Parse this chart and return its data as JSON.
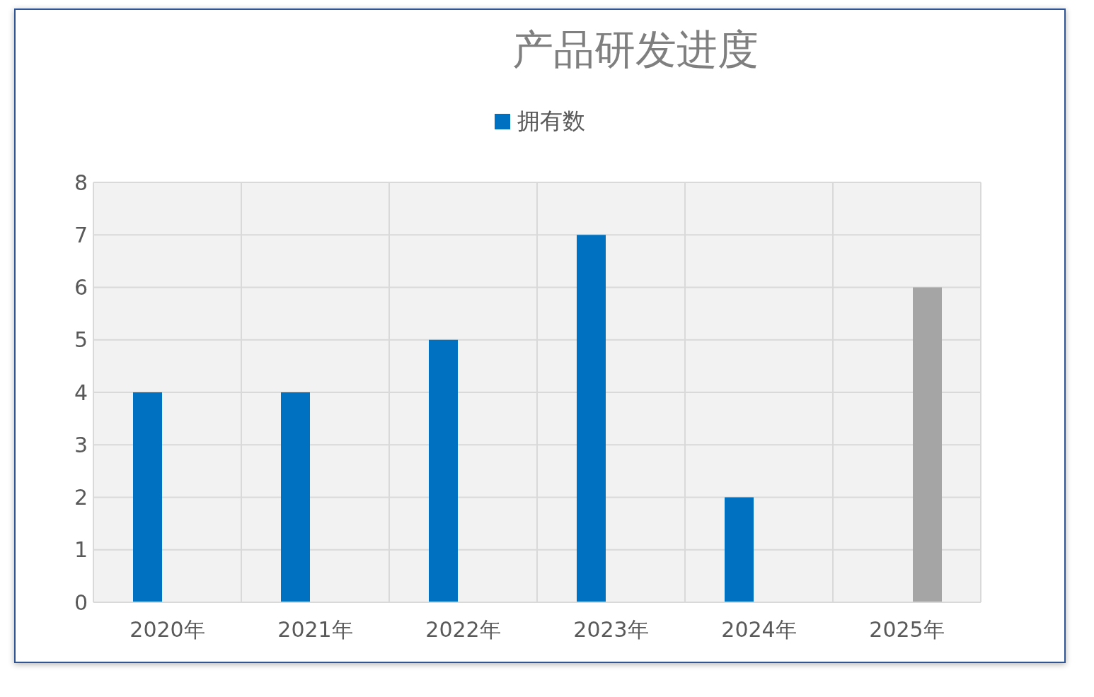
{
  "chart_data": {
    "type": "bar",
    "title": "产品研发进度",
    "categories": [
      "2020年",
      "2021年",
      "2022年",
      "2023年",
      "2024年",
      "2025年"
    ],
    "series": [
      {
        "name": "拥有数",
        "color": "#0070c0",
        "values": [
          4,
          4,
          5,
          7,
          2,
          null
        ]
      },
      {
        "color": "#a5a5a5",
        "values": [
          null,
          null,
          null,
          null,
          null,
          6
        ]
      }
    ],
    "ylim": [
      0,
      8
    ],
    "yticks": [
      0,
      1,
      2,
      3,
      4,
      5,
      6,
      7,
      8
    ],
    "grid": true,
    "legend": "top"
  }
}
